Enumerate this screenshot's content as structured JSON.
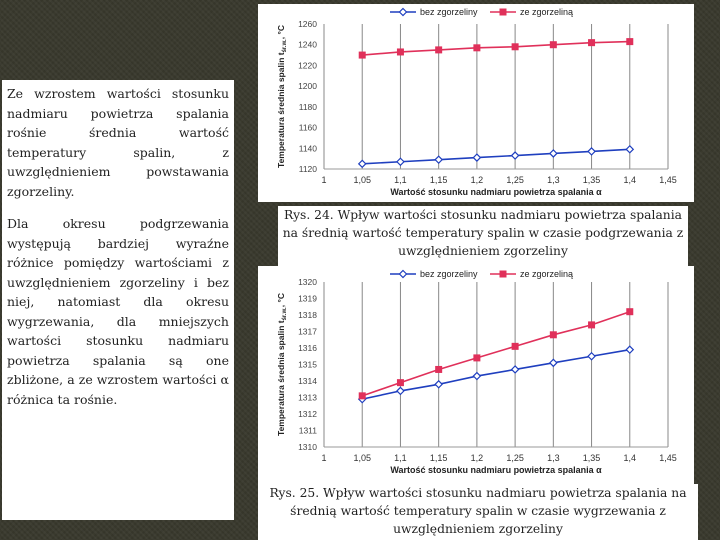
{
  "body_text": {
    "paragraph1": "Ze wzrostem wartości stosunku nadmiaru powietrza spalania rośnie średnia wartość temperatury spalin, z uwzględnieniem powstawania zgorzeliny.",
    "paragraph2": "Dla okresu podgrzewania występują bardziej wyraźne różnice pomiędzy wartościami z uwzględnieniem zgorzeliny i bez niej, natomiast dla okresu wygrzewania, dla mniejszych wartości stosunku nadmiaru powietrza spalania są one zbliżone, a ze wzrostem wartości α różnica ta rośnie."
  },
  "captions": {
    "fig24": "Rys. 24. Wpływ wartości stosunku nadmiaru powietrza spalania na średnią wartość temperatury spalin w czasie podgrzewania z uwzględnieniem zgorzeliny",
    "fig25": "Rys. 25. Wpływ wartości stosunku nadmiaru powietrza spalania na średnią wartość temperatury spalin w czasie wygrzewania z uwzględnieniem zgorzeliny"
  },
  "colors": {
    "series1": "#1f3fbf",
    "series2": "#e0305a",
    "grid": "#888888"
  },
  "chart_data": [
    {
      "type": "line",
      "xlabel": "Wartość stosunku nadmiaru powietrza spalania α",
      "ylabel": "Temperatura średnia spalin t",
      "ylabel_sub": "śr.w.",
      "ylabel_unit": "°C",
      "x_ticks": [
        "1",
        "1,05",
        "1,1",
        "1,15",
        "1,2",
        "1,25",
        "1,3",
        "1,35",
        "1,4",
        "1,45"
      ],
      "xlim": [
        1,
        1.45
      ],
      "y_ticks": [
        "1120",
        "1140",
        "1160",
        "1180",
        "1200",
        "1220",
        "1240",
        "1260"
      ],
      "ylim": [
        1120,
        1260
      ],
      "grid": "vertical",
      "legend": "top",
      "x": [
        1.05,
        1.1,
        1.15,
        1.2,
        1.25,
        1.3,
        1.35,
        1.4
      ],
      "series": [
        {
          "name": "bez zgorzeliny",
          "marker": "diamond",
          "values": [
            1125,
            1127,
            1129,
            1131,
            1133,
            1135,
            1137,
            1139
          ]
        },
        {
          "name": "ze zgorzeliną",
          "marker": "square",
          "values": [
            1230,
            1233,
            1235,
            1237,
            1238,
            1240,
            1242,
            1243
          ]
        }
      ]
    },
    {
      "type": "line",
      "xlabel": "Wartość stosunku nadmiaru powietrza spalania α",
      "ylabel": "Temperatura średnia spalin t",
      "ylabel_sub": "śr.w.",
      "ylabel_unit": "°C",
      "x_ticks": [
        "1",
        "1,05",
        "1,1",
        "1,15",
        "1,2",
        "1,25",
        "1,3",
        "1,35",
        "1,4",
        "1,45"
      ],
      "xlim": [
        1,
        1.45
      ],
      "y_ticks": [
        "1310",
        "1311",
        "1312",
        "1313",
        "1314",
        "1315",
        "1316",
        "1317",
        "1318",
        "1319",
        "1320"
      ],
      "ylim": [
        1310,
        1320
      ],
      "grid": "vertical",
      "legend": "top",
      "x": [
        1.05,
        1.1,
        1.15,
        1.2,
        1.25,
        1.3,
        1.35,
        1.4
      ],
      "series": [
        {
          "name": "bez zgorzeliny",
          "marker": "diamond",
          "values": [
            1312.9,
            1313.4,
            1313.8,
            1314.3,
            1314.7,
            1315.1,
            1315.5,
            1315.9
          ]
        },
        {
          "name": "ze zgorzeliną",
          "marker": "square",
          "values": [
            1313.1,
            1313.9,
            1314.7,
            1315.4,
            1316.1,
            1316.8,
            1317.4,
            1318.2
          ]
        }
      ]
    }
  ]
}
